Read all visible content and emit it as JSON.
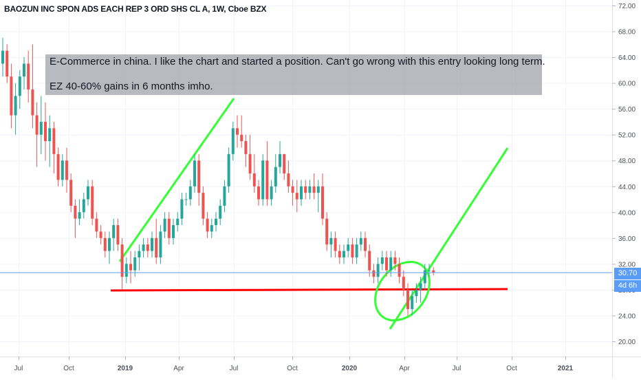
{
  "chart_data": {
    "type": "candlestick",
    "title": "BAOZUN INC SPON ADS EACH REP 3 ORD SHS CL A, 1W, Cboe BZX",
    "y_ticks": [
      "72.00",
      "68.00",
      "64.00",
      "60.00",
      "56.00",
      "52.00",
      "48.00",
      "44.00",
      "40.00",
      "36.00",
      "32.00",
      "28.00",
      "24.00",
      "20.00"
    ],
    "y_tick_values": [
      72,
      68,
      64,
      60,
      56,
      52,
      48,
      44,
      40,
      36,
      32,
      28,
      24,
      20
    ],
    "ylim": [
      17.5,
      73.5
    ],
    "x_ticks": [
      "Jul",
      "Oct",
      "2019",
      "Apr",
      "Jul",
      "Oct",
      "2020",
      "Apr",
      "Jul",
      "Oct",
      "2021"
    ],
    "x_tick_bold": [
      false,
      false,
      true,
      false,
      false,
      false,
      true,
      false,
      false,
      false,
      true
    ],
    "last_price": "30.70",
    "last_price_value": 30.7,
    "countdown": "4d 6h",
    "colors": {
      "up": "#26a69a",
      "down": "#ef5350",
      "annotation_line": "#33ff33",
      "support_line": "#ff0000",
      "price_line": "#5b9cf6"
    },
    "candles": [
      {
        "o": 63,
        "h": 67,
        "l": 61,
        "c": 65
      },
      {
        "o": 65,
        "h": 66,
        "l": 60,
        "c": 61
      },
      {
        "o": 61,
        "h": 63,
        "l": 53,
        "c": 55
      },
      {
        "o": 55,
        "h": 60,
        "l": 52,
        "c": 58
      },
      {
        "o": 58,
        "h": 62,
        "l": 56,
        "c": 61
      },
      {
        "o": 61,
        "h": 64,
        "l": 59,
        "c": 63
      },
      {
        "o": 63,
        "h": 65,
        "l": 57,
        "c": 59
      },
      {
        "o": 59,
        "h": 66,
        "l": 53,
        "c": 55
      },
      {
        "o": 55,
        "h": 57,
        "l": 47,
        "c": 52
      },
      {
        "o": 52,
        "h": 58,
        "l": 49,
        "c": 54
      },
      {
        "o": 54,
        "h": 57,
        "l": 48,
        "c": 51
      },
      {
        "o": 51,
        "h": 55,
        "l": 47,
        "c": 53
      },
      {
        "o": 53,
        "h": 54,
        "l": 46,
        "c": 49
      },
      {
        "o": 49,
        "h": 50,
        "l": 44,
        "c": 45
      },
      {
        "o": 45,
        "h": 49,
        "l": 44,
        "c": 48
      },
      {
        "o": 48,
        "h": 50,
        "l": 43,
        "c": 45
      },
      {
        "o": 45,
        "h": 46,
        "l": 40,
        "c": 41
      },
      {
        "o": 41,
        "h": 42,
        "l": 36,
        "c": 39
      },
      {
        "o": 39,
        "h": 42,
        "l": 38,
        "c": 40
      },
      {
        "o": 40,
        "h": 43,
        "l": 39,
        "c": 42
      },
      {
        "o": 42,
        "h": 45,
        "l": 41,
        "c": 44
      },
      {
        "o": 44,
        "h": 45,
        "l": 38,
        "c": 39
      },
      {
        "o": 39,
        "h": 40,
        "l": 36,
        "c": 37
      },
      {
        "o": 37,
        "h": 38,
        "l": 35,
        "c": 36
      },
      {
        "o": 36,
        "h": 37,
        "l": 33,
        "c": 34
      },
      {
        "o": 34,
        "h": 37,
        "l": 32,
        "c": 36
      },
      {
        "o": 36,
        "h": 39,
        "l": 34,
        "c": 38
      },
      {
        "o": 38,
        "h": 39,
        "l": 34,
        "c": 35
      },
      {
        "o": 35,
        "h": 36,
        "l": 28,
        "c": 30
      },
      {
        "o": 30,
        "h": 33,
        "l": 29,
        "c": 32
      },
      {
        "o": 32,
        "h": 34,
        "l": 29,
        "c": 31
      },
      {
        "o": 31,
        "h": 34,
        "l": 30,
        "c": 33
      },
      {
        "o": 33,
        "h": 35,
        "l": 31,
        "c": 34
      },
      {
        "o": 34,
        "h": 36,
        "l": 33,
        "c": 35
      },
      {
        "o": 35,
        "h": 36,
        "l": 33,
        "c": 34
      },
      {
        "o": 34,
        "h": 37,
        "l": 33,
        "c": 36
      },
      {
        "o": 36,
        "h": 39,
        "l": 32,
        "c": 33
      },
      {
        "o": 33,
        "h": 38,
        "l": 32,
        "c": 37
      },
      {
        "o": 37,
        "h": 40,
        "l": 36,
        "c": 39
      },
      {
        "o": 39,
        "h": 40,
        "l": 35,
        "c": 36
      },
      {
        "o": 36,
        "h": 39,
        "l": 35,
        "c": 38
      },
      {
        "o": 38,
        "h": 40,
        "l": 37,
        "c": 39
      },
      {
        "o": 39,
        "h": 43,
        "l": 38,
        "c": 42
      },
      {
        "o": 42,
        "h": 43,
        "l": 41,
        "c": 42
      },
      {
        "o": 42,
        "h": 45,
        "l": 41,
        "c": 44
      },
      {
        "o": 44,
        "h": 49,
        "l": 43,
        "c": 48
      },
      {
        "o": 48,
        "h": 49,
        "l": 41,
        "c": 43
      },
      {
        "o": 43,
        "h": 44,
        "l": 38,
        "c": 39
      },
      {
        "o": 39,
        "h": 40,
        "l": 36,
        "c": 37
      },
      {
        "o": 37,
        "h": 39,
        "l": 36,
        "c": 38
      },
      {
        "o": 38,
        "h": 40,
        "l": 37,
        "c": 39
      },
      {
        "o": 39,
        "h": 42,
        "l": 38,
        "c": 41
      },
      {
        "o": 41,
        "h": 45,
        "l": 40,
        "c": 44
      },
      {
        "o": 44,
        "h": 50,
        "l": 43,
        "c": 49
      },
      {
        "o": 49,
        "h": 54,
        "l": 48,
        "c": 53
      },
      {
        "o": 53,
        "h": 55,
        "l": 50,
        "c": 52
      },
      {
        "o": 52,
        "h": 55,
        "l": 50,
        "c": 51
      },
      {
        "o": 51,
        "h": 52,
        "l": 47,
        "c": 49
      },
      {
        "o": 49,
        "h": 52,
        "l": 45,
        "c": 46
      },
      {
        "o": 46,
        "h": 49,
        "l": 43,
        "c": 44
      },
      {
        "o": 44,
        "h": 45,
        "l": 41,
        "c": 42
      },
      {
        "o": 42,
        "h": 49,
        "l": 41,
        "c": 48
      },
      {
        "o": 48,
        "h": 51,
        "l": 41,
        "c": 42
      },
      {
        "o": 42,
        "h": 45,
        "l": 41,
        "c": 44
      },
      {
        "o": 44,
        "h": 49,
        "l": 43,
        "c": 47
      },
      {
        "o": 47,
        "h": 51,
        "l": 46,
        "c": 49
      },
      {
        "o": 49,
        "h": 49,
        "l": 45,
        "c": 46
      },
      {
        "o": 46,
        "h": 48,
        "l": 43,
        "c": 44
      },
      {
        "o": 44,
        "h": 45,
        "l": 41,
        "c": 43
      },
      {
        "o": 43,
        "h": 45,
        "l": 40,
        "c": 42
      },
      {
        "o": 42,
        "h": 45,
        "l": 41,
        "c": 44
      },
      {
        "o": 44,
        "h": 45,
        "l": 42,
        "c": 43
      },
      {
        "o": 43,
        "h": 45,
        "l": 42,
        "c": 44
      },
      {
        "o": 44,
        "h": 46,
        "l": 42,
        "c": 43
      },
      {
        "o": 43,
        "h": 45,
        "l": 40,
        "c": 44
      },
      {
        "o": 44,
        "h": 46,
        "l": 38,
        "c": 39
      },
      {
        "o": 39,
        "h": 40,
        "l": 34,
        "c": 35
      },
      {
        "o": 35,
        "h": 37,
        "l": 33,
        "c": 36
      },
      {
        "o": 36,
        "h": 37,
        "l": 33,
        "c": 34
      },
      {
        "o": 34,
        "h": 35,
        "l": 32,
        "c": 33
      },
      {
        "o": 33,
        "h": 35,
        "l": 32,
        "c": 34
      },
      {
        "o": 34,
        "h": 36,
        "l": 33,
        "c": 35
      },
      {
        "o": 35,
        "h": 36,
        "l": 32,
        "c": 33
      },
      {
        "o": 33,
        "h": 36,
        "l": 32,
        "c": 35
      },
      {
        "o": 35,
        "h": 37,
        "l": 34,
        "c": 36
      },
      {
        "o": 36,
        "h": 37,
        "l": 33,
        "c": 34
      },
      {
        "o": 34,
        "h": 35,
        "l": 30,
        "c": 31
      },
      {
        "o": 31,
        "h": 32,
        "l": 29,
        "c": 30
      },
      {
        "o": 30,
        "h": 33,
        "l": 29,
        "c": 32
      },
      {
        "o": 32,
        "h": 34,
        "l": 31,
        "c": 33
      },
      {
        "o": 33,
        "h": 34,
        "l": 30,
        "c": 31
      },
      {
        "o": 31,
        "h": 34,
        "l": 30,
        "c": 33
      },
      {
        "o": 33,
        "h": 34,
        "l": 31,
        "c": 32
      },
      {
        "o": 32,
        "h": 33,
        "l": 29,
        "c": 30
      },
      {
        "o": 30,
        "h": 31,
        "l": 27,
        "c": 28
      },
      {
        "o": 28,
        "h": 29,
        "l": 24,
        "c": 25
      },
      {
        "o": 25,
        "h": 28,
        "l": 24,
        "c": 27
      },
      {
        "o": 27,
        "h": 29,
        "l": 26,
        "c": 28
      },
      {
        "o": 28,
        "h": 30,
        "l": 26,
        "c": 29
      },
      {
        "o": 29,
        "h": 32,
        "l": 28,
        "c": 31
      },
      {
        "o": 31,
        "h": 32,
        "l": 30,
        "c": 31
      },
      {
        "o": 31,
        "h": 31.5,
        "l": 30.2,
        "c": 30.7
      }
    ]
  }
}
